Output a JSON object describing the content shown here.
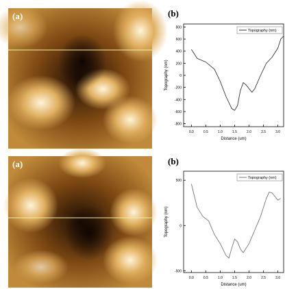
{
  "images": [
    {
      "label": "(a)"
    },
    {
      "label": "(a)"
    }
  ],
  "chart_data": [
    {
      "type": "line",
      "panel_label": "(b)",
      "xlabel": "Distance (um)",
      "ylabel": "Topography (nm)",
      "xlim": [
        -0.27,
        3.2
      ],
      "xticks": [
        {
          "value": 0,
          "label": "0.0"
        },
        0.5,
        {
          "value": 1,
          "label": "1.0"
        },
        1.5,
        {
          "value": 2,
          "label": "2.0"
        },
        2.5,
        {
          "value": 3,
          "label": "3.0"
        }
      ],
      "ylim": [
        -850,
        850
      ],
      "yticks": [
        -800,
        -600,
        -400,
        -200,
        0,
        200,
        400,
        600,
        800
      ],
      "legend": "upper right",
      "x": [
        0,
        0.2,
        0.5,
        0.8,
        1.0,
        1.2,
        1.4,
        1.5,
        1.6,
        1.7,
        1.8,
        1.9,
        2.0,
        2.1,
        2.2,
        2.4,
        2.6,
        2.8,
        3.0,
        3.1,
        3.2
      ],
      "series": [
        {
          "name": "Topography (nm)",
          "color": "#333333",
          "values": [
            430,
            280,
            220,
            100,
            -100,
            -350,
            -550,
            -580,
            -500,
            -250,
            -120,
            -160,
            -220,
            -280,
            -220,
            0,
            200,
            300,
            450,
            600,
            650
          ]
        }
      ]
    },
    {
      "type": "line",
      "panel_label": "(b)",
      "xlabel": "Distance (um)",
      "ylabel": "Topography (nm)",
      "xlim": [
        -0.27,
        3.2
      ],
      "xticks": [
        {
          "value": 0,
          "label": "0.0"
        },
        0.5,
        {
          "value": 1,
          "label": "1.0"
        },
        1.5,
        {
          "value": 2,
          "label": "2.0"
        },
        2.5,
        {
          "value": 3,
          "label": "3.0"
        }
      ],
      "ylim": [
        -520,
        600
      ],
      "yticks": [
        -500,
        0,
        500
      ],
      "legend": "upper right",
      "x": [
        0,
        0.2,
        0.4,
        0.6,
        0.8,
        1.0,
        1.2,
        1.3,
        1.4,
        1.5,
        1.6,
        1.7,
        1.8,
        1.9,
        2.0,
        2.2,
        2.4,
        2.6,
        2.7,
        2.8,
        3.0,
        3.1
      ],
      "series": [
        {
          "name": "Topography (nm)",
          "color": "#777777",
          "values": [
            460,
            200,
            100,
            50,
            -100,
            -200,
            -330,
            -360,
            -250,
            -150,
            -180,
            -260,
            -300,
            -250,
            -200,
            -50,
            100,
            300,
            370,
            360,
            280,
            300
          ]
        }
      ]
    }
  ]
}
